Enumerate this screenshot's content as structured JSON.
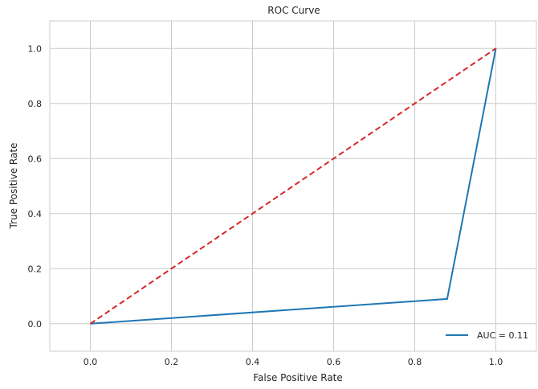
{
  "chart_data": {
    "type": "line",
    "title": "ROC Curve",
    "xlabel": "False Positive Rate",
    "ylabel": "True Positive Rate",
    "xlim": [
      -0.1,
      1.1
    ],
    "ylim": [
      -0.1,
      1.1
    ],
    "xticks": [
      0.0,
      0.2,
      0.4,
      0.6,
      0.8,
      1.0
    ],
    "yticks": [
      0.0,
      0.2,
      0.4,
      0.6,
      0.8,
      1.0
    ],
    "xtick_labels": [
      "0.0",
      "0.2",
      "0.4",
      "0.6",
      "0.8",
      "1.0"
    ],
    "ytick_labels": [
      "0.0",
      "0.2",
      "0.4",
      "0.6",
      "0.8",
      "1.0"
    ],
    "grid": true,
    "legend_position": "lower-right",
    "series": [
      {
        "name": "AUC = 0.11",
        "color": "#1f77b4",
        "style": "solid",
        "x": [
          0.0,
          0.88,
          1.0
        ],
        "y": [
          0.0,
          0.09,
          1.0
        ]
      },
      {
        "color": "#d62728",
        "style": "dashed",
        "x": [
          0.0,
          1.0
        ],
        "y": [
          0.0,
          1.0
        ]
      }
    ]
  }
}
